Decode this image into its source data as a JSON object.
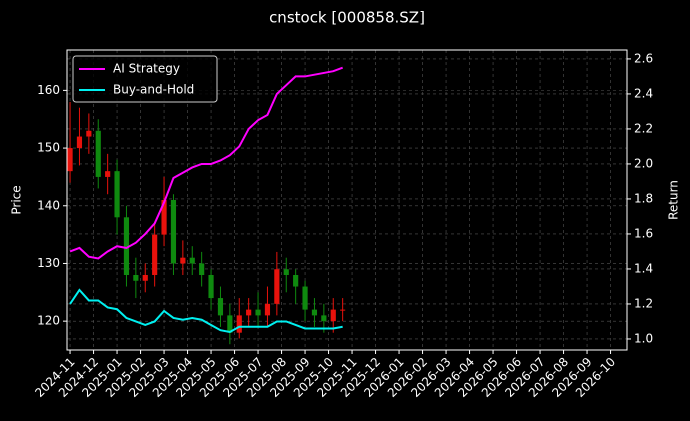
{
  "chart_data": {
    "type": "candlestick",
    "title": "cnstock [000858.SZ]",
    "ylabel": "Price",
    "y2label": "Return",
    "x": [
      0,
      0.4,
      0.8,
      1.2,
      1.6,
      2.0,
      2.4,
      2.8,
      3.2,
      3.6,
      4.0,
      4.4,
      4.8,
      5.2,
      5.6,
      6.0,
      6.4,
      6.8,
      7.2,
      7.6,
      8.0,
      8.4,
      8.8,
      9.2,
      9.6,
      10.0,
      10.4,
      10.8,
      11.2,
      11.6
    ],
    "open": [
      146,
      150,
      152,
      153,
      145,
      146,
      138,
      128,
      127,
      128,
      135,
      141,
      130,
      131,
      130,
      128,
      124,
      121,
      118,
      121,
      122,
      121,
      123,
      129,
      128,
      126,
      122,
      121,
      120,
      122
    ],
    "high": [
      158,
      157,
      156,
      155,
      149,
      148,
      140,
      131,
      130,
      137,
      145,
      142,
      134,
      133,
      132,
      129,
      126,
      123,
      124,
      124,
      125,
      126,
      132,
      131,
      129,
      127,
      124,
      123,
      124,
      124
    ],
    "low": [
      144,
      147,
      149,
      143,
      142,
      135,
      126,
      124,
      125,
      126,
      133,
      128,
      128,
      128,
      126,
      122,
      119,
      116,
      117,
      119,
      119,
      119,
      121,
      125,
      123,
      120,
      119,
      118,
      118,
      120
    ],
    "close": [
      150,
      152,
      153,
      145,
      146,
      138,
      128,
      127,
      128,
      135,
      141,
      130,
      131,
      130,
      128,
      124,
      121,
      118,
      121,
      122,
      121,
      123,
      129,
      128,
      126,
      122,
      121,
      120,
      122,
      122
    ],
    "up_color": "#e8120c",
    "down_color": "#0f8a0f",
    "series": [
      {
        "name": "AI Strategy",
        "color": "#ff00ff",
        "axis": "y2",
        "values": [
          1.5,
          1.52,
          1.47,
          1.46,
          1.5,
          1.53,
          1.52,
          1.55,
          1.6,
          1.66,
          1.78,
          1.92,
          1.95,
          1.98,
          2.0,
          2.0,
          2.02,
          2.05,
          2.1,
          2.2,
          2.25,
          2.28,
          2.4,
          2.45,
          2.5,
          2.5,
          2.51,
          2.52,
          2.53,
          2.55
        ]
      },
      {
        "name": "Buy-and-Hold",
        "color": "#00f0f0",
        "axis": "y2",
        "values": [
          1.2,
          1.28,
          1.22,
          1.22,
          1.18,
          1.17,
          1.12,
          1.1,
          1.08,
          1.1,
          1.16,
          1.12,
          1.11,
          1.12,
          1.11,
          1.08,
          1.05,
          1.04,
          1.07,
          1.07,
          1.07,
          1.07,
          1.1,
          1.1,
          1.08,
          1.06,
          1.06,
          1.06,
          1.06,
          1.07
        ]
      }
    ],
    "xlim": [
      -0.13,
      23.7
    ],
    "xticks": [
      {
        "value": 0,
        "label": "2024-11"
      },
      {
        "value": 1,
        "label": "2024-12"
      },
      {
        "value": 2,
        "label": "2025-01"
      },
      {
        "value": 3,
        "label": "2025-02"
      },
      {
        "value": 4,
        "label": "2025-03"
      },
      {
        "value": 5,
        "label": "2025-04"
      },
      {
        "value": 6,
        "label": "2025-05"
      },
      {
        "value": 7,
        "label": "2025-06"
      },
      {
        "value": 8,
        "label": "2025-07"
      },
      {
        "value": 9,
        "label": "2025-08"
      },
      {
        "value": 10,
        "label": "2025-09"
      },
      {
        "value": 11,
        "label": "2025-10"
      },
      {
        "value": 12,
        "label": "2025-11"
      },
      {
        "value": 13,
        "label": "2025-12"
      },
      {
        "value": 14,
        "label": "2026-01"
      },
      {
        "value": 15,
        "label": "2026-02"
      },
      {
        "value": 16,
        "label": "2026-03"
      },
      {
        "value": 17,
        "label": "2026-04"
      },
      {
        "value": 18,
        "label": "2026-05"
      },
      {
        "value": 19,
        "label": "2026-06"
      },
      {
        "value": 20,
        "label": "2026-07"
      },
      {
        "value": 21,
        "label": "2026-08"
      },
      {
        "value": 22,
        "label": "2026-09"
      },
      {
        "value": 23,
        "label": "2026-10"
      }
    ],
    "ylim": [
      115,
      167
    ],
    "yticks": [
      120,
      130,
      140,
      150,
      160
    ],
    "y2lim": [
      0.937,
      2.651
    ],
    "y2ticks": [
      {
        "value": 1.0,
        "label": "1.0"
      },
      1.2,
      1.4,
      1.6,
      1.8,
      {
        "value": 2.0,
        "label": "2.0"
      },
      2.2,
      2.4,
      2.6
    ],
    "grid": true,
    "legend": "upper left"
  }
}
